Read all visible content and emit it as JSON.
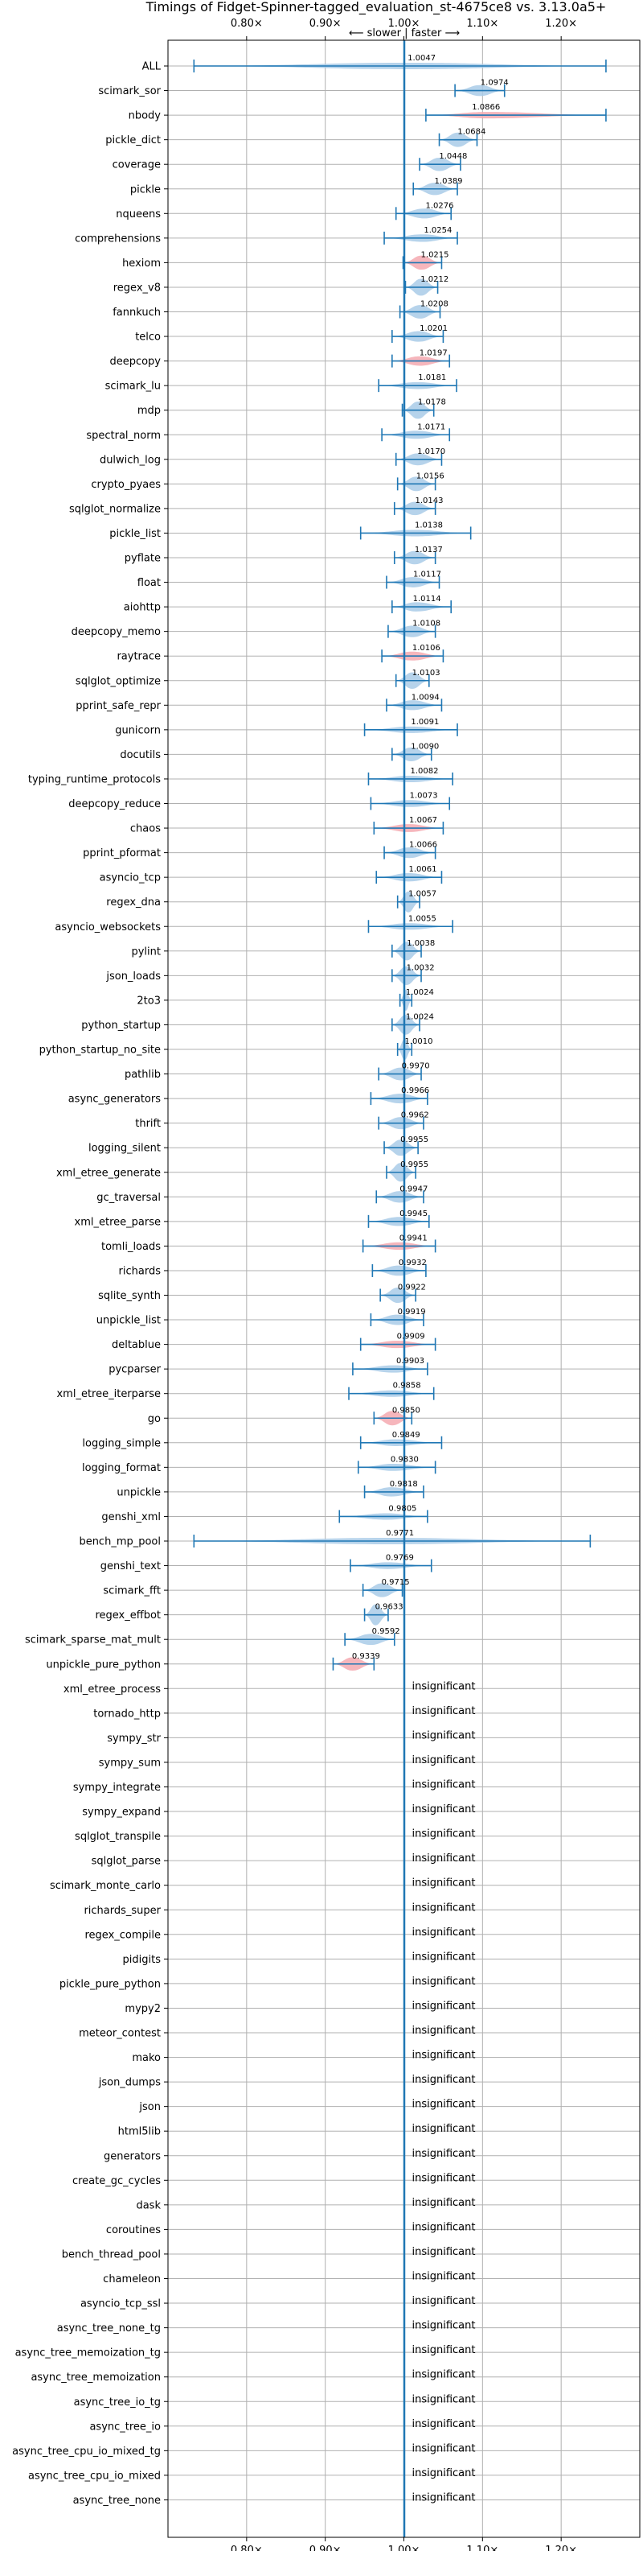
{
  "chart_data": {
    "type": "violin",
    "title": "Timings of Fidget-Spinner-tagged_evaluation_st-4675ce8 vs. 3.13.0a5+",
    "direction_label": "⟵ slower | faster ⟶",
    "x_ticks": [
      0.8,
      0.9,
      1.0,
      1.1,
      1.2
    ],
    "x_tick_labels": [
      "0.80×",
      "0.90×",
      "1.00×",
      "1.10×",
      "1.20×"
    ],
    "xlim": [
      0.7,
      1.3
    ],
    "grid": true,
    "reference_line": 1.0,
    "insignificant_label": "insignificant",
    "colors": {
      "faster": "#a9cbe8",
      "slower": "#f4a9b0",
      "line": "#1f77b4",
      "grid": "#b0b0b0"
    },
    "benchmarks": [
      {
        "name": "ALL",
        "value": 1.0047,
        "lo": 0.733,
        "hi": 1.257,
        "color": "faster"
      },
      {
        "name": "scimark_sor",
        "value": 1.0974,
        "lo": 1.065,
        "hi": 1.128,
        "color": "faster"
      },
      {
        "name": "nbody",
        "value": 1.0866,
        "lo": 1.028,
        "hi": 1.257,
        "color": "slower"
      },
      {
        "name": "pickle_dict",
        "value": 1.0684,
        "lo": 1.045,
        "hi": 1.093,
        "color": "faster"
      },
      {
        "name": "coverage",
        "value": 1.0448,
        "lo": 1.02,
        "hi": 1.072,
        "color": "faster"
      },
      {
        "name": "pickle",
        "value": 1.0389,
        "lo": 1.012,
        "hi": 1.068,
        "color": "faster"
      },
      {
        "name": "nqueens",
        "value": 1.0276,
        "lo": 0.99,
        "hi": 1.06,
        "color": "faster"
      },
      {
        "name": "comprehensions",
        "value": 1.0254,
        "lo": 0.975,
        "hi": 1.068,
        "color": "faster"
      },
      {
        "name": "hexiom",
        "value": 1.0215,
        "lo": 0.999,
        "hi": 1.048,
        "color": "slower"
      },
      {
        "name": "regex_v8",
        "value": 1.0212,
        "lo": 1.002,
        "hi": 1.043,
        "color": "faster"
      },
      {
        "name": "fannkuch",
        "value": 1.0208,
        "lo": 0.995,
        "hi": 1.046,
        "color": "faster"
      },
      {
        "name": "telco",
        "value": 1.0201,
        "lo": 0.985,
        "hi": 1.05,
        "color": "faster"
      },
      {
        "name": "deepcopy",
        "value": 1.0197,
        "lo": 0.985,
        "hi": 1.058,
        "color": "slower"
      },
      {
        "name": "scimark_lu",
        "value": 1.0181,
        "lo": 0.968,
        "hi": 1.067,
        "color": "faster"
      },
      {
        "name": "mdp",
        "value": 1.0178,
        "lo": 0.998,
        "hi": 1.038,
        "color": "faster"
      },
      {
        "name": "spectral_norm",
        "value": 1.0171,
        "lo": 0.972,
        "hi": 1.058,
        "color": "faster"
      },
      {
        "name": "dulwich_log",
        "value": 1.017,
        "lo": 0.99,
        "hi": 1.048,
        "color": "faster"
      },
      {
        "name": "crypto_pyaes",
        "value": 1.0156,
        "lo": 0.992,
        "hi": 1.04,
        "color": "faster"
      },
      {
        "name": "sqlglot_normalize",
        "value": 1.0143,
        "lo": 0.988,
        "hi": 1.04,
        "color": "faster"
      },
      {
        "name": "pickle_list",
        "value": 1.0138,
        "lo": 0.945,
        "hi": 1.085,
        "color": "faster"
      },
      {
        "name": "pyflate",
        "value": 1.0137,
        "lo": 0.988,
        "hi": 1.04,
        "color": "faster"
      },
      {
        "name": "float",
        "value": 1.0117,
        "lo": 0.978,
        "hi": 1.045,
        "color": "faster"
      },
      {
        "name": "aiohttp",
        "value": 1.0114,
        "lo": 0.985,
        "hi": 1.06,
        "color": "faster"
      },
      {
        "name": "deepcopy_memo",
        "value": 1.0108,
        "lo": 0.98,
        "hi": 1.04,
        "color": "faster"
      },
      {
        "name": "raytrace",
        "value": 1.0106,
        "lo": 0.972,
        "hi": 1.05,
        "color": "slower"
      },
      {
        "name": "sqlglot_optimize",
        "value": 1.0103,
        "lo": 0.99,
        "hi": 1.032,
        "color": "faster"
      },
      {
        "name": "pprint_safe_repr",
        "value": 1.0094,
        "lo": 0.978,
        "hi": 1.048,
        "color": "faster"
      },
      {
        "name": "gunicorn",
        "value": 1.0091,
        "lo": 0.95,
        "hi": 1.068,
        "color": "faster"
      },
      {
        "name": "docutils",
        "value": 1.009,
        "lo": 0.985,
        "hi": 1.035,
        "color": "faster"
      },
      {
        "name": "typing_runtime_protocols",
        "value": 1.0082,
        "lo": 0.955,
        "hi": 1.062,
        "color": "faster"
      },
      {
        "name": "deepcopy_reduce",
        "value": 1.0073,
        "lo": 0.958,
        "hi": 1.058,
        "color": "faster"
      },
      {
        "name": "chaos",
        "value": 1.0067,
        "lo": 0.962,
        "hi": 1.05,
        "color": "slower"
      },
      {
        "name": "pprint_pformat",
        "value": 1.0066,
        "lo": 0.975,
        "hi": 1.04,
        "color": "faster"
      },
      {
        "name": "asyncio_tcp",
        "value": 1.0061,
        "lo": 0.965,
        "hi": 1.048,
        "color": "faster"
      },
      {
        "name": "regex_dna",
        "value": 1.0057,
        "lo": 0.992,
        "hi": 1.02,
        "color": "faster"
      },
      {
        "name": "asyncio_websockets",
        "value": 1.0055,
        "lo": 0.955,
        "hi": 1.062,
        "color": "faster"
      },
      {
        "name": "pylint",
        "value": 1.0038,
        "lo": 0.985,
        "hi": 1.022,
        "color": "faster"
      },
      {
        "name": "json_loads",
        "value": 1.0032,
        "lo": 0.985,
        "hi": 1.022,
        "color": "faster"
      },
      {
        "name": "2to3",
        "value": 1.0024,
        "lo": 0.995,
        "hi": 1.01,
        "color": "faster"
      },
      {
        "name": "python_startup",
        "value": 1.0024,
        "lo": 0.985,
        "hi": 1.02,
        "color": "faster"
      },
      {
        "name": "python_startup_no_site",
        "value": 1.001,
        "lo": 0.992,
        "hi": 1.01,
        "color": "faster"
      },
      {
        "name": "pathlib",
        "value": 0.997,
        "lo": 0.968,
        "hi": 1.022,
        "color": "faster"
      },
      {
        "name": "async_generators",
        "value": 0.9966,
        "lo": 0.958,
        "hi": 1.03,
        "color": "faster"
      },
      {
        "name": "thrift",
        "value": 0.9962,
        "lo": 0.968,
        "hi": 1.025,
        "color": "faster"
      },
      {
        "name": "logging_silent",
        "value": 0.9955,
        "lo": 0.975,
        "hi": 1.018,
        "color": "faster"
      },
      {
        "name": "xml_etree_generate",
        "value": 0.9955,
        "lo": 0.978,
        "hi": 1.015,
        "color": "faster"
      },
      {
        "name": "gc_traversal",
        "value": 0.9947,
        "lo": 0.965,
        "hi": 1.025,
        "color": "faster"
      },
      {
        "name": "xml_etree_parse",
        "value": 0.9945,
        "lo": 0.955,
        "hi": 1.032,
        "color": "faster"
      },
      {
        "name": "tomli_loads",
        "value": 0.9941,
        "lo": 0.948,
        "hi": 1.04,
        "color": "slower"
      },
      {
        "name": "richards",
        "value": 0.9932,
        "lo": 0.96,
        "hi": 1.028,
        "color": "faster"
      },
      {
        "name": "sqlite_synth",
        "value": 0.9922,
        "lo": 0.97,
        "hi": 1.015,
        "color": "faster"
      },
      {
        "name": "unpickle_list",
        "value": 0.9919,
        "lo": 0.958,
        "hi": 1.025,
        "color": "faster"
      },
      {
        "name": "deltablue",
        "value": 0.9909,
        "lo": 0.945,
        "hi": 1.04,
        "color": "slower"
      },
      {
        "name": "pycparser",
        "value": 0.9903,
        "lo": 0.935,
        "hi": 1.03,
        "color": "faster"
      },
      {
        "name": "xml_etree_iterparse",
        "value": 0.9858,
        "lo": 0.93,
        "hi": 1.038,
        "color": "faster"
      },
      {
        "name": "go",
        "value": 0.985,
        "lo": 0.962,
        "hi": 1.01,
        "color": "slower"
      },
      {
        "name": "logging_simple",
        "value": 0.9849,
        "lo": 0.945,
        "hi": 1.048,
        "color": "faster"
      },
      {
        "name": "logging_format",
        "value": 0.983,
        "lo": 0.942,
        "hi": 1.04,
        "color": "faster"
      },
      {
        "name": "unpickle",
        "value": 0.9818,
        "lo": 0.95,
        "hi": 1.025,
        "color": "faster"
      },
      {
        "name": "genshi_xml",
        "value": 0.9805,
        "lo": 0.918,
        "hi": 1.03,
        "color": "faster"
      },
      {
        "name": "bench_mp_pool",
        "value": 0.9771,
        "lo": 0.733,
        "hi": 1.237,
        "color": "faster"
      },
      {
        "name": "genshi_text",
        "value": 0.9769,
        "lo": 0.932,
        "hi": 1.035,
        "color": "faster"
      },
      {
        "name": "scimark_fft",
        "value": 0.9715,
        "lo": 0.948,
        "hi": 0.998,
        "color": "faster"
      },
      {
        "name": "regex_effbot",
        "value": 0.9633,
        "lo": 0.95,
        "hi": 0.98,
        "color": "faster"
      },
      {
        "name": "scimark_sparse_mat_mult",
        "value": 0.9592,
        "lo": 0.925,
        "hi": 0.988,
        "color": "faster"
      },
      {
        "name": "unpickle_pure_python",
        "value": 0.9339,
        "lo": 0.91,
        "hi": 0.962,
        "color": "slower"
      },
      {
        "name": "xml_etree_process",
        "value": null
      },
      {
        "name": "tornado_http",
        "value": null
      },
      {
        "name": "sympy_str",
        "value": null
      },
      {
        "name": "sympy_sum",
        "value": null
      },
      {
        "name": "sympy_integrate",
        "value": null
      },
      {
        "name": "sympy_expand",
        "value": null
      },
      {
        "name": "sqlglot_transpile",
        "value": null
      },
      {
        "name": "sqlglot_parse",
        "value": null
      },
      {
        "name": "scimark_monte_carlo",
        "value": null
      },
      {
        "name": "richards_super",
        "value": null
      },
      {
        "name": "regex_compile",
        "value": null
      },
      {
        "name": "pidigits",
        "value": null
      },
      {
        "name": "pickle_pure_python",
        "value": null
      },
      {
        "name": "mypy2",
        "value": null
      },
      {
        "name": "meteor_contest",
        "value": null
      },
      {
        "name": "mako",
        "value": null
      },
      {
        "name": "json_dumps",
        "value": null
      },
      {
        "name": "json",
        "value": null
      },
      {
        "name": "html5lib",
        "value": null
      },
      {
        "name": "generators",
        "value": null
      },
      {
        "name": "create_gc_cycles",
        "value": null
      },
      {
        "name": "dask",
        "value": null
      },
      {
        "name": "coroutines",
        "value": null
      },
      {
        "name": "bench_thread_pool",
        "value": null
      },
      {
        "name": "chameleon",
        "value": null
      },
      {
        "name": "asyncio_tcp_ssl",
        "value": null
      },
      {
        "name": "async_tree_none_tg",
        "value": null
      },
      {
        "name": "async_tree_memoization_tg",
        "value": null
      },
      {
        "name": "async_tree_memoization",
        "value": null
      },
      {
        "name": "async_tree_io_tg",
        "value": null
      },
      {
        "name": "async_tree_io",
        "value": null
      },
      {
        "name": "async_tree_cpu_io_mixed_tg",
        "value": null
      },
      {
        "name": "async_tree_cpu_io_mixed",
        "value": null
      },
      {
        "name": "async_tree_none",
        "value": null
      }
    ]
  }
}
